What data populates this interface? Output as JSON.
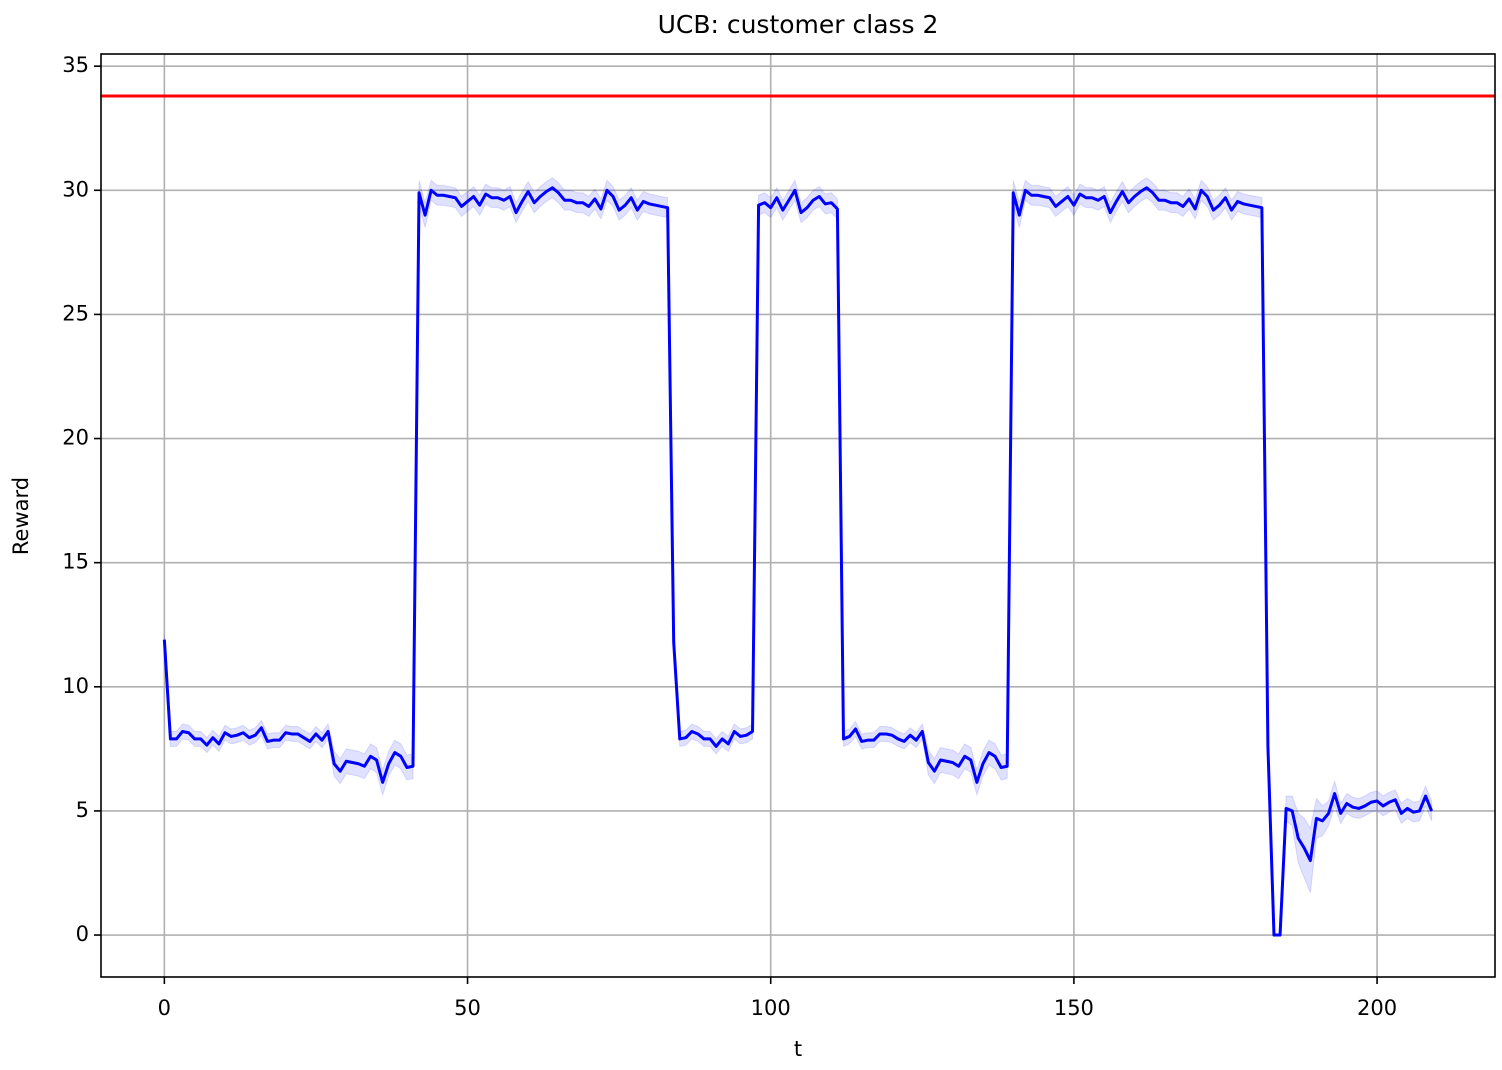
{
  "chart_data": {
    "type": "line",
    "title": "UCB: customer class 2",
    "x_label": "t",
    "y_label": "Reward",
    "xlim": [
      -10.45,
      219.45
    ],
    "ylim": [
      -1.69,
      35.49
    ],
    "xticks": [
      0,
      50,
      100,
      150,
      200
    ],
    "yticks": [
      0,
      5,
      10,
      15,
      20,
      25,
      30,
      35
    ],
    "grid": true,
    "reference_line": {
      "value": 33.8,
      "color": "#ff0000"
    },
    "band_color": "#0000ff",
    "x": [
      0,
      1,
      2,
      3,
      4,
      5,
      6,
      7,
      8,
      9,
      10,
      11,
      12,
      13,
      14,
      15,
      16,
      17,
      18,
      19,
      20,
      21,
      22,
      23,
      24,
      25,
      26,
      27,
      28,
      29,
      30,
      31,
      32,
      33,
      34,
      35,
      36,
      37,
      38,
      39,
      40,
      41,
      42,
      43,
      44,
      45,
      46,
      47,
      48,
      49,
      50,
      51,
      52,
      53,
      54,
      55,
      56,
      57,
      58,
      59,
      60,
      61,
      62,
      63,
      64,
      65,
      66,
      67,
      68,
      69,
      70,
      71,
      72,
      73,
      74,
      75,
      76,
      77,
      78,
      79,
      80,
      81,
      82,
      83,
      84,
      85,
      86,
      87,
      88,
      89,
      90,
      91,
      92,
      93,
      94,
      95,
      96,
      97,
      98,
      99,
      100,
      101,
      102,
      103,
      104,
      105,
      106,
      107,
      108,
      109,
      110,
      111,
      112,
      113,
      114,
      115,
      116,
      117,
      118,
      119,
      120,
      121,
      122,
      123,
      124,
      125,
      126,
      127,
      128,
      129,
      130,
      131,
      132,
      133,
      134,
      135,
      136,
      137,
      138,
      139,
      140,
      141,
      142,
      143,
      144,
      145,
      146,
      147,
      148,
      149,
      150,
      151,
      152,
      153,
      154,
      155,
      156,
      157,
      158,
      159,
      160,
      161,
      162,
      163,
      164,
      165,
      166,
      167,
      168,
      169,
      170,
      171,
      172,
      173,
      174,
      175,
      176,
      177,
      178,
      179,
      180,
      181,
      182,
      183,
      184,
      185,
      186,
      187,
      188,
      189,
      190,
      191,
      192,
      193,
      194,
      195,
      196,
      197,
      198,
      199,
      200,
      201,
      202,
      203,
      204,
      205,
      206,
      207,
      208,
      209
    ],
    "series": [
      {
        "color": "#0000ff",
        "values": [
          11.9,
          7.9,
          7.9,
          8.2,
          8.15,
          7.9,
          7.9,
          7.65,
          7.95,
          7.7,
          8.15,
          8.0,
          8.05,
          8.15,
          7.95,
          8.05,
          8.35,
          7.8,
          7.85,
          7.85,
          8.15,
          8.1,
          8.1,
          7.95,
          7.8,
          8.1,
          7.85,
          8.2,
          6.9,
          6.6,
          7.0,
          6.95,
          6.9,
          6.8,
          7.2,
          7.05,
          6.15,
          6.9,
          7.35,
          7.2,
          6.75,
          6.8,
          29.9,
          29.0,
          30.0,
          29.8,
          29.8,
          29.75,
          29.7,
          29.35,
          29.55,
          29.75,
          29.4,
          29.85,
          29.7,
          29.7,
          29.6,
          29.75,
          29.1,
          29.55,
          29.95,
          29.5,
          29.75,
          29.95,
          30.1,
          29.9,
          29.6,
          29.6,
          29.5,
          29.5,
          29.35,
          29.65,
          29.25,
          30.0,
          29.75,
          29.2,
          29.4,
          29.7,
          29.2,
          29.55,
          29.45,
          29.4,
          29.35,
          29.3,
          11.8,
          7.9,
          7.95,
          8.2,
          8.1,
          7.9,
          7.9,
          7.6,
          7.9,
          7.7,
          8.2,
          8.0,
          8.05,
          8.2,
          29.4,
          29.5,
          29.3,
          29.7,
          29.2,
          29.6,
          30.0,
          29.1,
          29.3,
          29.6,
          29.75,
          29.45,
          29.5,
          29.25,
          7.9,
          8.0,
          8.3,
          7.8,
          7.85,
          7.85,
          8.1,
          8.1,
          8.05,
          7.9,
          7.8,
          8.05,
          7.85,
          8.2,
          6.95,
          6.6,
          7.05,
          7.0,
          6.95,
          6.8,
          7.2,
          7.05,
          6.15,
          6.9,
          7.35,
          7.2,
          6.75,
          6.8,
          29.9,
          29.0,
          30.0,
          29.8,
          29.8,
          29.75,
          29.7,
          29.35,
          29.55,
          29.75,
          29.4,
          29.85,
          29.7,
          29.7,
          29.6,
          29.75,
          29.1,
          29.55,
          29.95,
          29.5,
          29.75,
          29.95,
          30.1,
          29.9,
          29.6,
          29.6,
          29.5,
          29.5,
          29.35,
          29.65,
          29.25,
          30.0,
          29.75,
          29.2,
          29.4,
          29.7,
          29.2,
          29.55,
          29.45,
          29.4,
          29.35,
          29.3,
          7.6,
          0,
          0,
          5.1,
          5.0,
          3.9,
          3.5,
          3.0,
          4.7,
          4.6,
          4.9,
          5.7,
          4.9,
          5.3,
          5.15,
          5.1,
          5.2,
          5.35,
          5.4,
          5.2,
          5.35,
          5.45,
          4.9,
          5.1,
          4.95,
          5.0,
          5.6,
          5.0
        ],
        "error": [
          0.2,
          0.3,
          0.3,
          0.3,
          0.3,
          0.3,
          0.3,
          0.3,
          0.3,
          0.3,
          0.3,
          0.3,
          0.3,
          0.3,
          0.3,
          0.3,
          0.3,
          0.3,
          0.3,
          0.3,
          0.3,
          0.3,
          0.3,
          0.3,
          0.3,
          0.3,
          0.3,
          0.3,
          0.5,
          0.5,
          0.5,
          0.5,
          0.5,
          0.5,
          0.5,
          0.5,
          0.5,
          0.5,
          0.5,
          0.5,
          0.5,
          0.5,
          0.5,
          0.5,
          0.4,
          0.4,
          0.4,
          0.4,
          0.4,
          0.4,
          0.4,
          0.4,
          0.4,
          0.4,
          0.4,
          0.4,
          0.4,
          0.4,
          0.4,
          0.4,
          0.4,
          0.4,
          0.4,
          0.4,
          0.4,
          0.4,
          0.4,
          0.4,
          0.4,
          0.4,
          0.4,
          0.4,
          0.4,
          0.4,
          0.4,
          0.4,
          0.4,
          0.4,
          0.4,
          0.4,
          0.4,
          0.4,
          0.4,
          0.4,
          0.3,
          0.3,
          0.3,
          0.3,
          0.3,
          0.3,
          0.3,
          0.3,
          0.3,
          0.3,
          0.3,
          0.3,
          0.3,
          0.3,
          0.4,
          0.4,
          0.4,
          0.4,
          0.4,
          0.4,
          0.4,
          0.4,
          0.4,
          0.4,
          0.4,
          0.4,
          0.4,
          0.4,
          0.3,
          0.3,
          0.3,
          0.3,
          0.3,
          0.3,
          0.3,
          0.3,
          0.3,
          0.3,
          0.3,
          0.3,
          0.3,
          0.3,
          0.5,
          0.5,
          0.5,
          0.5,
          0.5,
          0.5,
          0.5,
          0.5,
          0.5,
          0.5,
          0.5,
          0.5,
          0.5,
          0.5,
          0.5,
          0.5,
          0.4,
          0.4,
          0.4,
          0.4,
          0.4,
          0.4,
          0.4,
          0.4,
          0.4,
          0.4,
          0.4,
          0.4,
          0.4,
          0.4,
          0.4,
          0.4,
          0.4,
          0.4,
          0.4,
          0.4,
          0.4,
          0.4,
          0.4,
          0.4,
          0.4,
          0.4,
          0.4,
          0.4,
          0.4,
          0.4,
          0.4,
          0.4,
          0.4,
          0.4,
          0.4,
          0.4,
          0.4,
          0.4,
          0.4,
          0.4,
          0.3,
          0,
          0,
          0.5,
          0.6,
          1.0,
          1.2,
          1.3,
          0.8,
          0.6,
          0.5,
          0.5,
          0.4,
          0.4,
          0.4,
          0.4,
          0.4,
          0.4,
          0.4,
          0.4,
          0.4,
          0.4,
          0.4,
          0.4,
          0.4,
          0.4,
          0.4,
          0.4
        ]
      }
    ]
  }
}
